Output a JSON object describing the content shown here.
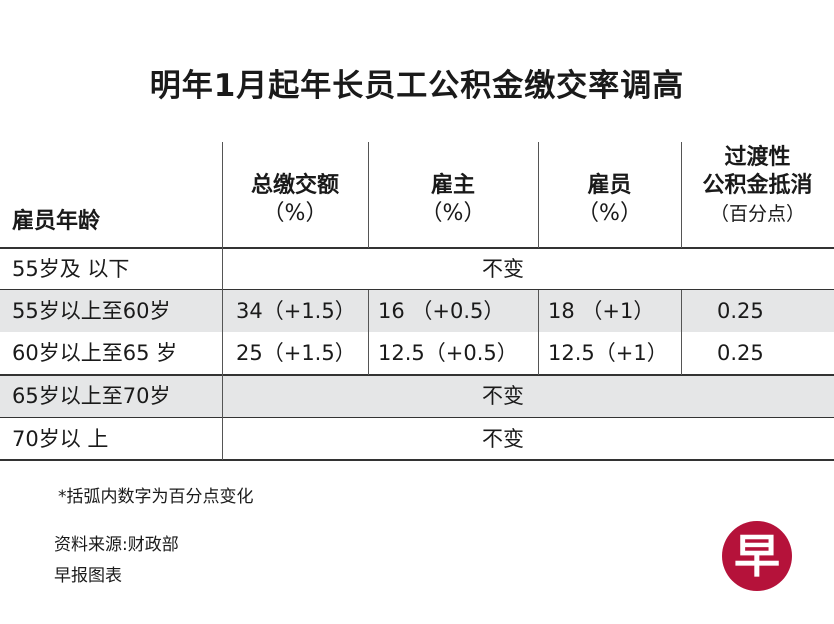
{
  "title": "明年1月起年长员工公积金缴交率调高",
  "table": {
    "headers": [
      {
        "label": "雇员年龄",
        "sub": ""
      },
      {
        "label": "总缴交额",
        "sub": "（%）"
      },
      {
        "label": "雇主",
        "sub": "（%）"
      },
      {
        "label": "雇员",
        "sub": "（%）"
      },
      {
        "label": "过渡性\n公积金抵消",
        "sub": "（百分点）"
      }
    ],
    "rows": [
      {
        "age": "55岁及 以下",
        "merged": "不变"
      },
      {
        "age": "55岁以上至60岁",
        "total": "34（+1.5）",
        "employer": "16 （+0.5）",
        "employee": "18 （+1）",
        "offset": "0.25"
      },
      {
        "age": "60岁以上至65 岁",
        "total": "25（+1.5）",
        "employer": "12.5（+0.5）",
        "employee": "12.5（+1）",
        "offset": "0.25"
      },
      {
        "age": "65岁以上至70岁",
        "merged": "不变"
      },
      {
        "age": "70岁以 上",
        "merged": "不变"
      }
    ]
  },
  "footnote": "*括弧内数字为百分点变化",
  "source": "资料来源:财政部",
  "credit": "早报图表",
  "logo": {
    "text": "早",
    "color": "#b5123a"
  }
}
